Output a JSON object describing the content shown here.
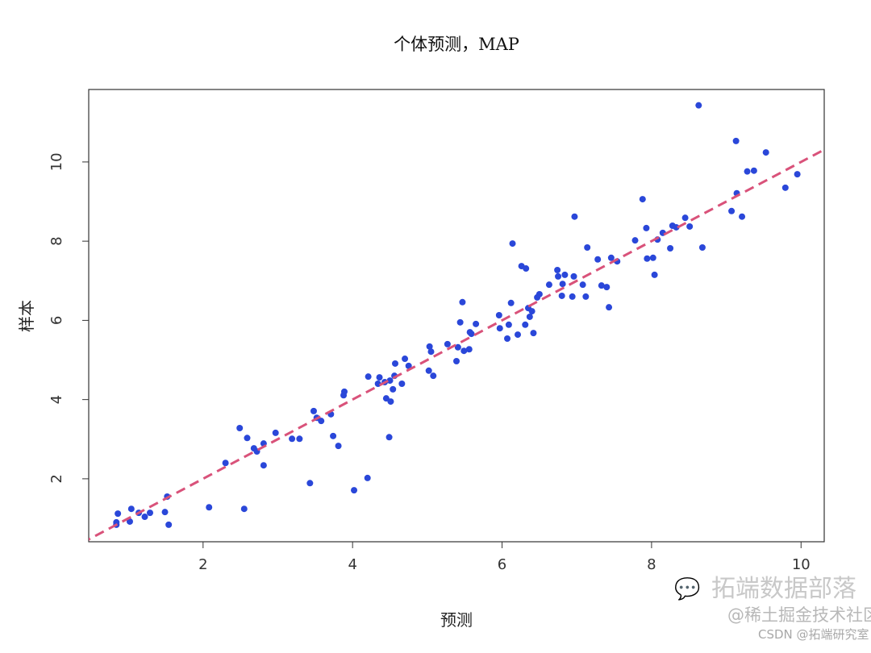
{
  "chart_data": {
    "type": "scatter",
    "title": "个体预测，MAP",
    "xlabel": "预测",
    "ylabel": "样本",
    "xlim": [
      0.47,
      10.31
    ],
    "ylim": [
      0.41,
      11.83
    ],
    "xticks": [
      "2",
      "4",
      "6",
      "8",
      "10"
    ],
    "yticks": [
      "2",
      "4",
      "6",
      "8",
      "10"
    ],
    "grid": false,
    "point_color": "#2a47d9",
    "reference_line": {
      "slope": 1,
      "intercept": 0,
      "style": "dashed",
      "color": "#d9527a"
    },
    "points": [
      [
        0.86,
        1.12
      ],
      [
        0.84,
        0.9
      ],
      [
        0.84,
        0.84
      ],
      [
        1.02,
        0.92
      ],
      [
        1.04,
        1.24
      ],
      [
        1.14,
        1.14
      ],
      [
        1.22,
        1.04
      ],
      [
        1.29,
        1.14
      ],
      [
        1.52,
        1.55
      ],
      [
        1.49,
        1.16
      ],
      [
        1.54,
        0.84
      ],
      [
        2.08,
        1.28
      ],
      [
        2.3,
        2.4
      ],
      [
        2.49,
        3.28
      ],
      [
        2.59,
        3.03
      ],
      [
        2.55,
        1.24
      ],
      [
        2.68,
        2.77
      ],
      [
        2.72,
        2.69
      ],
      [
        2.81,
        2.89
      ],
      [
        2.81,
        2.34
      ],
      [
        2.97,
        3.16
      ],
      [
        3.19,
        3.01
      ],
      [
        3.29,
        3.01
      ],
      [
        3.43,
        1.89
      ],
      [
        3.48,
        3.71
      ],
      [
        3.52,
        3.54
      ],
      [
        3.58,
        3.46
      ],
      [
        3.71,
        3.63
      ],
      [
        3.74,
        3.08
      ],
      [
        3.81,
        2.83
      ],
      [
        3.88,
        4.11
      ],
      [
        3.89,
        4.2
      ],
      [
        4.02,
        1.71
      ],
      [
        4.2,
        2.02
      ],
      [
        4.21,
        4.58
      ],
      [
        4.34,
        4.4
      ],
      [
        4.36,
        4.56
      ],
      [
        4.43,
        4.44
      ],
      [
        4.45,
        4.03
      ],
      [
        4.49,
        3.05
      ],
      [
        4.5,
        4.48
      ],
      [
        4.51,
        3.95
      ],
      [
        4.54,
        4.26
      ],
      [
        4.56,
        4.6
      ],
      [
        4.57,
        4.91
      ],
      [
        4.66,
        4.4
      ],
      [
        4.7,
        5.03
      ],
      [
        4.75,
        4.85
      ],
      [
        5.03,
        5.34
      ],
      [
        5.05,
        5.21
      ],
      [
        5.02,
        4.73
      ],
      [
        5.08,
        4.6
      ],
      [
        5.27,
        5.4
      ],
      [
        5.39,
        4.97
      ],
      [
        5.41,
        5.32
      ],
      [
        5.44,
        5.95
      ],
      [
        5.47,
        6.46
      ],
      [
        5.49,
        5.23
      ],
      [
        5.56,
        5.27
      ],
      [
        5.57,
        5.7
      ],
      [
        5.59,
        5.66
      ],
      [
        5.65,
        5.91
      ],
      [
        5.96,
        6.13
      ],
      [
        5.97,
        5.8
      ],
      [
        6.07,
        5.54
      ],
      [
        6.09,
        5.89
      ],
      [
        6.12,
        6.44
      ],
      [
        6.14,
        7.94
      ],
      [
        6.21,
        5.64
      ],
      [
        6.26,
        7.37
      ],
      [
        6.32,
        7.31
      ],
      [
        6.31,
        5.89
      ],
      [
        6.35,
        6.31
      ],
      [
        6.37,
        6.09
      ],
      [
        6.4,
        6.23
      ],
      [
        6.42,
        5.68
      ],
      [
        6.47,
        6.58
      ],
      [
        6.5,
        6.66
      ],
      [
        6.63,
        6.9
      ],
      [
        6.74,
        7.27
      ],
      [
        6.75,
        7.11
      ],
      [
        6.8,
        6.62
      ],
      [
        6.81,
        6.92
      ],
      [
        6.84,
        7.15
      ],
      [
        6.94,
        6.6
      ],
      [
        6.96,
        7.11
      ],
      [
        6.97,
        8.62
      ],
      [
        7.08,
        6.9
      ],
      [
        7.12,
        6.6
      ],
      [
        7.14,
        7.84
      ],
      [
        7.28,
        7.54
      ],
      [
        7.33,
        6.88
      ],
      [
        7.4,
        6.84
      ],
      [
        7.43,
        6.33
      ],
      [
        7.46,
        7.58
      ],
      [
        7.54,
        7.49
      ],
      [
        7.78,
        8.02
      ],
      [
        7.88,
        9.06
      ],
      [
        7.93,
        8.33
      ],
      [
        7.94,
        7.56
      ],
      [
        8.02,
        7.58
      ],
      [
        8.04,
        7.15
      ],
      [
        8.08,
        8.04
      ],
      [
        8.15,
        8.21
      ],
      [
        8.25,
        7.82
      ],
      [
        8.28,
        8.39
      ],
      [
        8.33,
        8.35
      ],
      [
        8.45,
        8.59
      ],
      [
        8.51,
        8.37
      ],
      [
        8.63,
        11.43
      ],
      [
        8.68,
        7.84
      ],
      [
        9.07,
        8.76
      ],
      [
        9.13,
        10.53
      ],
      [
        9.14,
        9.21
      ],
      [
        9.21,
        8.62
      ],
      [
        9.28,
        9.76
      ],
      [
        9.37,
        9.78
      ],
      [
        9.53,
        10.24
      ],
      [
        9.79,
        9.35
      ],
      [
        9.95,
        9.69
      ]
    ]
  },
  "watermark": {
    "line1": "拓端数据部落",
    "line2": "@稀土掘金技术社区",
    "line3": "CSDN @拓端研究室",
    "icon": "wechat-icon"
  }
}
